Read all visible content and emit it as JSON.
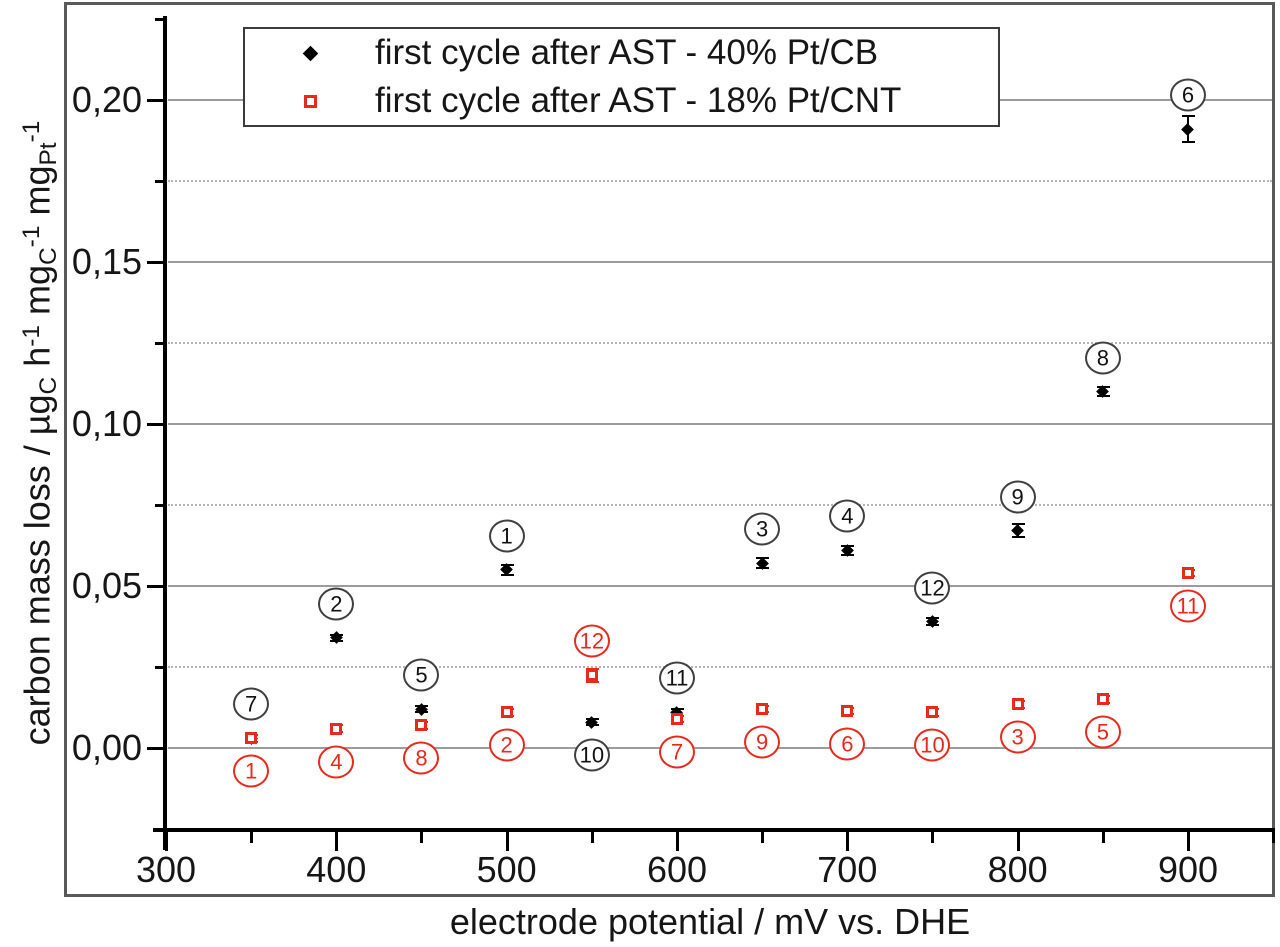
{
  "figure": {
    "background": "#ffffff",
    "border_color": "#595959",
    "axis_color": "#000000",
    "gridline_solid_color": "#9c9c9c",
    "gridline_dotted_color": "#b4b4b4"
  },
  "legend": {
    "entries": [
      {
        "label": "first cycle after AST - 40% Pt/CB",
        "marker": "filled-diamond-icon",
        "color": "#000000"
      },
      {
        "label": "first cycle after AST - 18% Pt/CNT",
        "marker": "open-square-icon",
        "color": "#e8291c"
      }
    ]
  },
  "chart_data": {
    "type": "scatter",
    "title": "",
    "xlabel": "electrode potential / mV vs. DHE",
    "ylabel_plain": "carbon mass loss / µgC h-1 mgC-1 mgPt-1",
    "ylabel_parts": [
      {
        "t": "carbon mass loss / µg"
      },
      {
        "t": "C",
        "s": "sub"
      },
      {
        "t": " h"
      },
      {
        "t": "-1",
        "s": "sup"
      },
      {
        "t": " mg"
      },
      {
        "t": "C",
        "s": "sub"
      },
      {
        "t": "-1",
        "s": "sup"
      },
      {
        "t": " mg"
      },
      {
        "t": "Pt",
        "s": "sub"
      },
      {
        "t": "-1",
        "s": "sup"
      }
    ],
    "xlim": [
      293,
      952
    ],
    "ylim": [
      -0.025,
      0.225
    ],
    "decimal_separator": ",",
    "x_major_ticks": [
      300,
      400,
      500,
      600,
      700,
      800,
      900
    ],
    "x_minor_ticks": [
      350,
      450,
      550,
      650,
      750,
      850,
      950
    ],
    "y_major_ticks": [
      {
        "label": "0,00",
        "value": 0.0
      },
      {
        "label": "0,05",
        "value": 0.05
      },
      {
        "label": "0,10",
        "value": 0.1
      },
      {
        "label": "0,15",
        "value": 0.15
      },
      {
        "label": "0,20",
        "value": 0.2
      }
    ],
    "y_minor_ticks": [
      0.025,
      0.075,
      0.125,
      0.175,
      0.225
    ],
    "solid_gridlines": [
      0.0,
      0.05,
      0.1,
      0.15,
      0.2
    ],
    "dotted_gridlines": [
      0.025,
      0.075,
      0.125,
      0.175
    ],
    "grid": true,
    "legend_position": "top-center",
    "x": [
      350,
      400,
      450,
      500,
      550,
      600,
      650,
      700,
      750,
      800,
      850,
      900
    ],
    "series": [
      {
        "name": "first cycle after AST - 40% Pt/CB",
        "marker": "filled-diamond",
        "color": "#000000",
        "annotation_circle_color": "#3f3f3f",
        "values": [
          0.003,
          0.034,
          0.012,
          0.055,
          0.008,
          0.011,
          0.057,
          0.061,
          0.039,
          0.067,
          0.11,
          0.191
        ],
        "errors": [
          0.001,
          0.001,
          0.001,
          0.0015,
          0.001,
          0.001,
          0.0015,
          0.0015,
          0.001,
          0.002,
          0.0015,
          0.004
        ],
        "point_labels": [
          "7",
          "2",
          "5",
          "1",
          "10",
          "11",
          "3",
          "4",
          "12",
          "9",
          "8",
          "6"
        ],
        "label_side": [
          "above",
          "above",
          "above",
          "above",
          "below",
          "above",
          "above",
          "above",
          "above",
          "above",
          "above",
          "above"
        ]
      },
      {
        "name": "first cycle after AST - 18% Pt/CNT",
        "marker": "open-square",
        "color": "#e8291c",
        "annotation_circle_color": "#e8291c",
        "values": [
          0.003,
          0.006,
          0.007,
          0.011,
          0.0225,
          0.009,
          0.012,
          0.0115,
          0.011,
          0.0135,
          0.015,
          0.054
        ],
        "errors": [
          0.001,
          0.001,
          0.001,
          0.001,
          0.002,
          0.001,
          0.001,
          0.001,
          0.001,
          0.001,
          0.001,
          0.001
        ],
        "point_labels": [
          "1",
          "4",
          "8",
          "2",
          "12",
          "7",
          "9",
          "6",
          "10",
          "3",
          "5",
          "11"
        ],
        "label_side": [
          "below",
          "below",
          "below",
          "below",
          "above",
          "below",
          "below",
          "below",
          "below",
          "below",
          "below",
          "below"
        ]
      }
    ]
  }
}
